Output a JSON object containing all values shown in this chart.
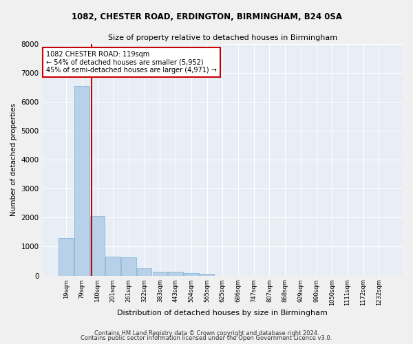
{
  "title": "1082, CHESTER ROAD, ERDINGTON, BIRMINGHAM, B24 0SA",
  "subtitle": "Size of property relative to detached houses in Birmingham",
  "xlabel": "Distribution of detached houses by size in Birmingham",
  "ylabel": "Number of detached properties",
  "bin_labels": [
    "19sqm",
    "79sqm",
    "140sqm",
    "201sqm",
    "261sqm",
    "322sqm",
    "383sqm",
    "443sqm",
    "504sqm",
    "565sqm",
    "625sqm",
    "686sqm",
    "747sqm",
    "807sqm",
    "868sqm",
    "929sqm",
    "990sqm",
    "1050sqm",
    "1111sqm",
    "1172sqm",
    "1232sqm"
  ],
  "bar_values": [
    1300,
    6550,
    2050,
    650,
    640,
    250,
    130,
    125,
    80,
    60,
    0,
    0,
    0,
    0,
    0,
    0,
    0,
    0,
    0,
    0,
    0
  ],
  "bar_color": "#b8d0e8",
  "bar_edge_color": "#7aafd4",
  "annotation_text": "1082 CHESTER ROAD: 119sqm\n← 54% of detached houses are smaller (5,952)\n45% of semi-detached houses are larger (4,971) →",
  "ylim": [
    0,
    8000
  ],
  "yticks": [
    0,
    1000,
    2000,
    3000,
    4000,
    5000,
    6000,
    7000,
    8000
  ],
  "background_color": "#e8eef5",
  "grid_color": "#ffffff",
  "fig_background": "#f0f0f0",
  "footer_line1": "Contains HM Land Registry data © Crown copyright and database right 2024.",
  "footer_line2": "Contains public sector information licensed under the Open Government Licence v3.0."
}
